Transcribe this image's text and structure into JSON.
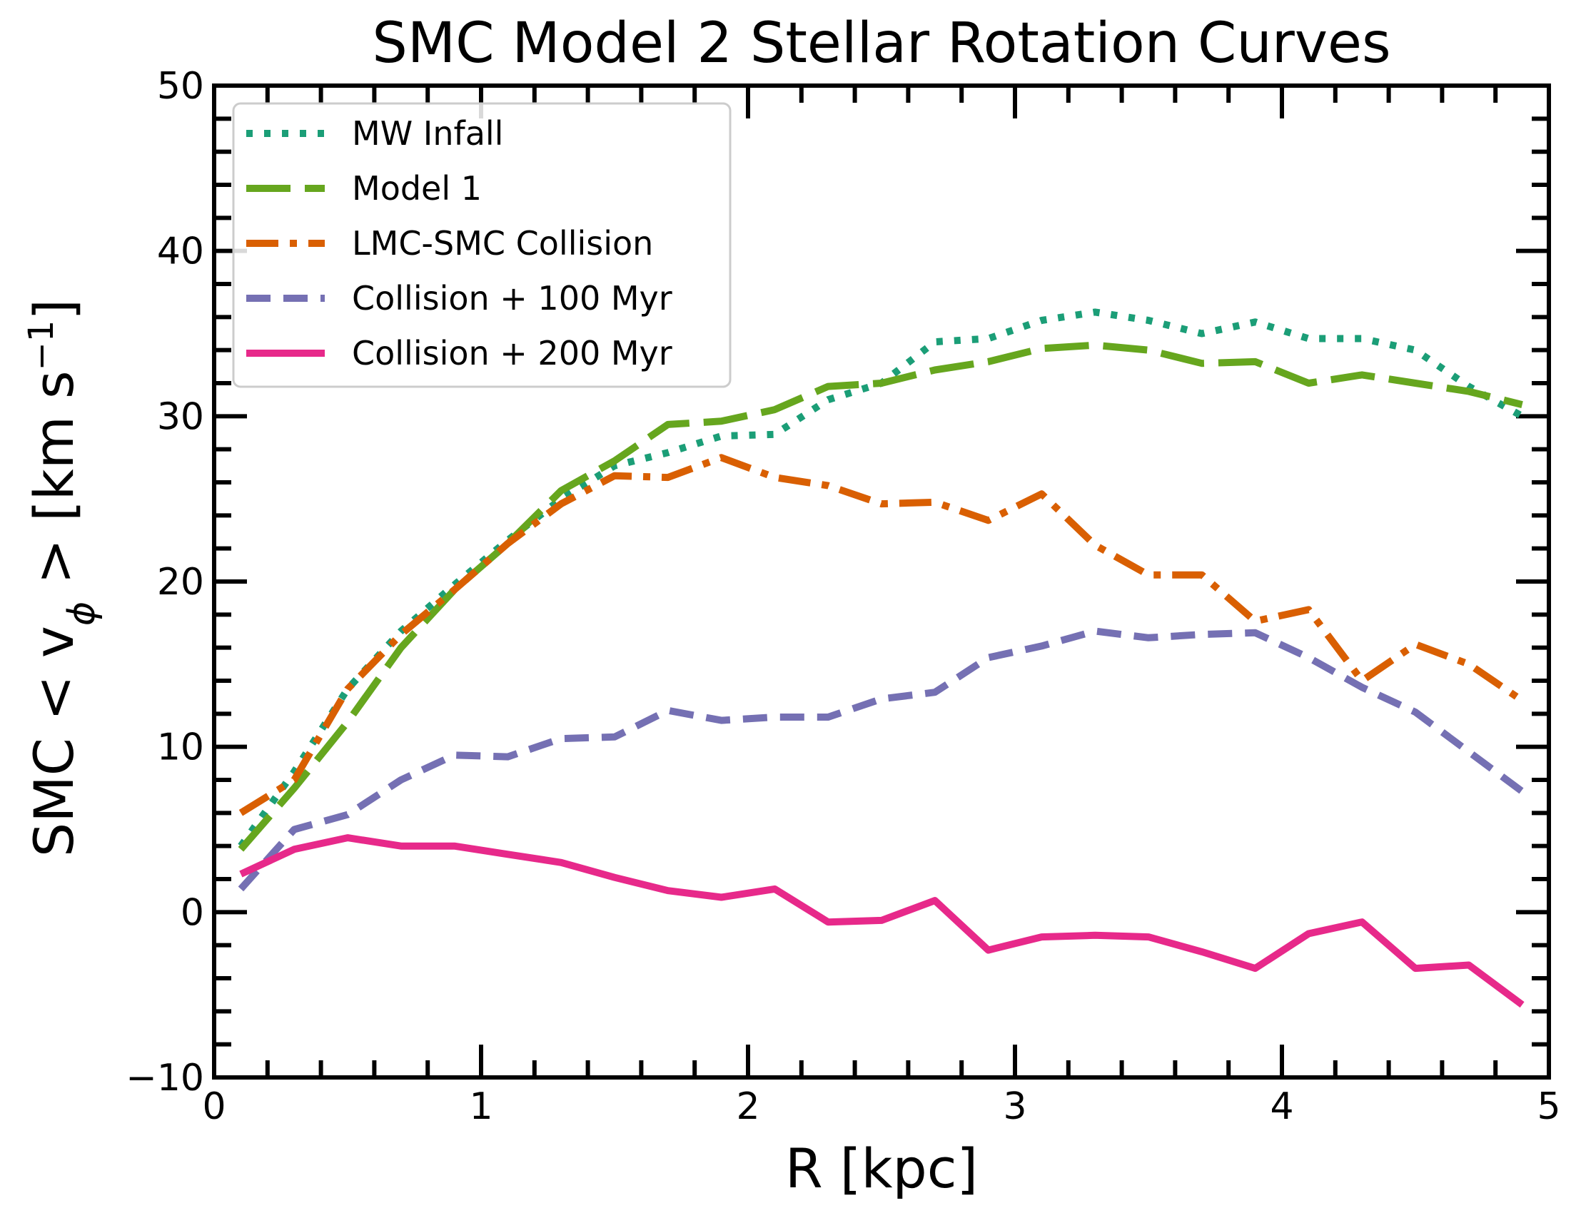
{
  "chart_data": {
    "type": "line",
    "title": "SMC Model 2 Stellar Rotation Curves",
    "xlabel": "R [kpc]",
    "ylabel": "SMC  < v_ϕ >  [km s⁻¹]",
    "ylabel_parts": {
      "prefix": "SMC  < v",
      "sub": "ϕ",
      "mid": " >  [km s",
      "sup": "−1",
      "suffix": "]"
    },
    "xlim": [
      0,
      5
    ],
    "ylim": [
      -10,
      50
    ],
    "xticks": [
      0,
      1,
      2,
      3,
      4,
      5
    ],
    "xtick_labels": [
      "0",
      "1",
      "2",
      "3",
      "4",
      "5"
    ],
    "yticks": [
      -10,
      0,
      10,
      20,
      30,
      40,
      50
    ],
    "ytick_labels": [
      "−10",
      "0",
      "10",
      "20",
      "30",
      "40",
      "50"
    ],
    "grid": false,
    "legend_position": "upper-left",
    "x": [
      0.1,
      0.3,
      0.5,
      0.7,
      0.9,
      1.1,
      1.3,
      1.5,
      1.7,
      1.9,
      2.1,
      2.3,
      2.5,
      2.7,
      2.9,
      3.1,
      3.3,
      3.5,
      3.7,
      3.9,
      4.1,
      4.3,
      4.5,
      4.7,
      4.9
    ],
    "series": [
      {
        "name": "MW Infall",
        "color": "#1b9e77",
        "style": "dotted",
        "values": [
          4.0,
          8.5,
          13.5,
          17.0,
          19.8,
          22.5,
          25.0,
          27.0,
          27.8,
          28.8,
          28.9,
          31.0,
          32.0,
          34.5,
          34.7,
          35.8,
          36.3,
          35.8,
          35.0,
          35.7,
          34.7,
          34.7,
          34.0,
          31.8,
          30.0
        ]
      },
      {
        "name": "Model 1",
        "color": "#66a61e",
        "style": "longdash",
        "values": [
          3.8,
          7.5,
          11.5,
          16.0,
          19.5,
          22.3,
          25.5,
          27.3,
          29.5,
          29.7,
          30.4,
          31.8,
          32.0,
          32.8,
          33.3,
          34.1,
          34.3,
          34.0,
          33.2,
          33.3,
          32.0,
          32.5,
          32.0,
          31.5,
          30.7
        ]
      },
      {
        "name": "LMC-SMC Collision",
        "color": "#d95f02",
        "style": "dashdot",
        "values": [
          6.0,
          8.0,
          13.5,
          16.8,
          19.5,
          22.3,
          24.7,
          26.4,
          26.3,
          27.5,
          26.3,
          25.8,
          24.7,
          24.8,
          23.7,
          25.3,
          22.2,
          20.4,
          20.4,
          17.6,
          18.3,
          14.0,
          16.2,
          15.0,
          12.8
        ]
      },
      {
        "name": "Collision + 100 Myr",
        "color": "#7570b3",
        "style": "dashed",
        "values": [
          1.4,
          5.0,
          5.9,
          8.0,
          9.5,
          9.4,
          10.5,
          10.6,
          12.2,
          11.6,
          11.8,
          11.8,
          12.9,
          13.3,
          15.4,
          16.1,
          17.0,
          16.6,
          16.8,
          16.9,
          15.4,
          13.6,
          12.1,
          9.7,
          7.3
        ]
      },
      {
        "name": "Collision + 200 Myr",
        "color": "#e7298a",
        "style": "solid",
        "values": [
          2.3,
          3.8,
          4.5,
          4.0,
          4.0,
          3.5,
          3.0,
          2.1,
          1.3,
          0.9,
          1.4,
          -0.6,
          -0.5,
          0.7,
          -2.3,
          -1.5,
          -1.4,
          -1.5,
          -2.4,
          -3.4,
          -1.3,
          -0.6,
          -3.4,
          -3.2,
          -5.6
        ]
      }
    ]
  }
}
